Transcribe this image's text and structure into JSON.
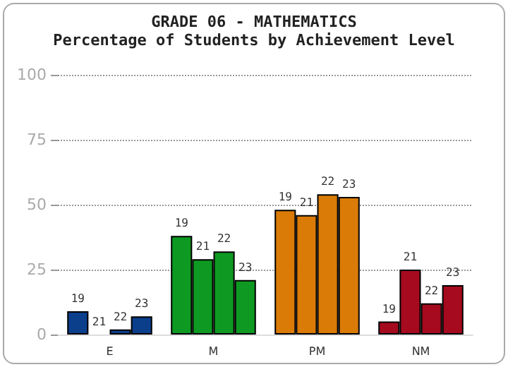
{
  "chart_data": {
    "type": "bar",
    "title": "GRADE 06 - MATHEMATICS",
    "subtitle": "Percentage of Students by Achievement Level",
    "categories": [
      "E",
      "M",
      "PM",
      "NM"
    ],
    "series": [
      {
        "name": "19",
        "colors": [
          "#0b3f8c",
          "#0e9a22",
          "#d97b06",
          "#a50a1e"
        ],
        "values": [
          9,
          38,
          48,
          5
        ]
      },
      {
        "name": "21",
        "colors": [
          "#0b3f8c",
          "#0e9a22",
          "#d97b06",
          "#a50a1e"
        ],
        "values": [
          0,
          29,
          46,
          25
        ]
      },
      {
        "name": "22",
        "colors": [
          "#0b3f8c",
          "#0e9a22",
          "#d97b06",
          "#a50a1e"
        ],
        "values": [
          2,
          32,
          54,
          12
        ]
      },
      {
        "name": "23",
        "colors": [
          "#0b3f8c",
          "#0e9a22",
          "#d97b06",
          "#a50a1e"
        ],
        "values": [
          7,
          21,
          53,
          19
        ]
      }
    ],
    "ylim": [
      0,
      100
    ],
    "yticks": [
      0,
      25,
      50,
      75,
      100
    ],
    "grid": "y",
    "legend": false
  }
}
